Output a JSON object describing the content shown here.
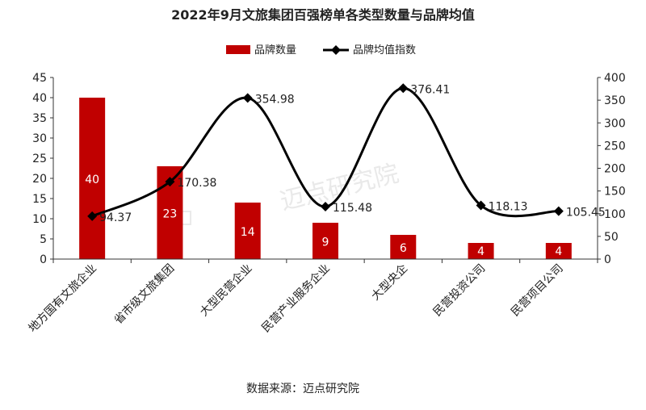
{
  "chart_data": {
    "type": "bar",
    "title": "2022年9月文旅集团百强榜单各类型数量与品牌均值",
    "categories": [
      "地方国有文旅企业",
      "省市级文旅集团",
      "大型民营企业",
      "民营产业服务企业",
      "大型央企",
      "民营投资公司",
      "民营项目公司"
    ],
    "series": [
      {
        "name": "品牌数量",
        "type": "bar",
        "axis": "left",
        "color": "#c00000",
        "values": [
          40,
          23,
          14,
          9,
          6,
          4,
          4
        ]
      },
      {
        "name": "品牌均值指数",
        "type": "line",
        "axis": "right",
        "color": "#000000",
        "values": [
          94.37,
          170.38,
          354.98,
          115.48,
          376.41,
          118.13,
          105.45
        ]
      }
    ],
    "left_axis": {
      "min": 0,
      "max": 45,
      "step": 5,
      "ticks": [
        "0",
        "5",
        "10",
        "15",
        "20",
        "25",
        "30",
        "35",
        "40",
        "45"
      ]
    },
    "right_axis": {
      "min": 0,
      "max": 400,
      "step": 50,
      "ticks": [
        "0",
        "50",
        "100",
        "150",
        "200",
        "250",
        "300",
        "350",
        "400"
      ]
    },
    "legend": "top",
    "grid": false,
    "watermark": "迈点研究院",
    "source": "数据来源：迈点研究院"
  }
}
